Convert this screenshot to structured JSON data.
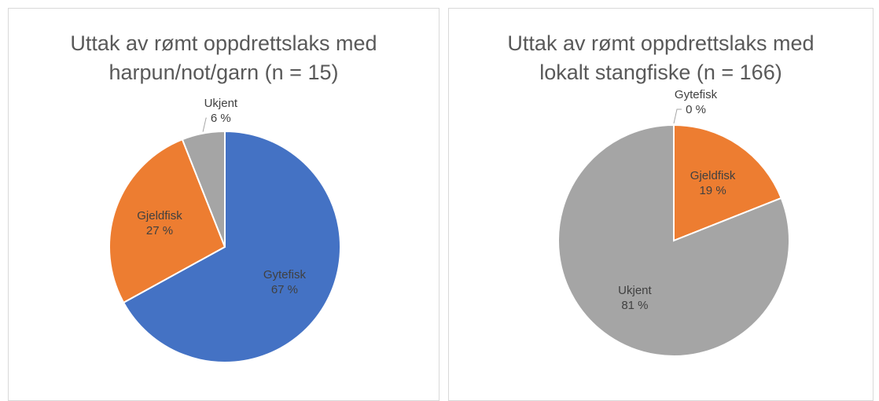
{
  "chart_data": [
    {
      "type": "pie",
      "title": "Uttak av rømt oppdrettslaks med harpun/not/garn (n = 15)",
      "categories": [
        "Gytefisk",
        "Gjeldfisk",
        "Ukjent"
      ],
      "values": [
        67,
        27,
        6
      ],
      "value_labels": [
        "67 %",
        "27 %",
        "6 %"
      ],
      "colors": [
        "#4472c4",
        "#ed7d31",
        "#a5a5a5"
      ]
    },
    {
      "type": "pie",
      "title": "Uttak av rømt oppdrettslaks med lokalt stangfiske (n = 166)",
      "categories": [
        "Gytefisk",
        "Gjeldfisk",
        "Ukjent"
      ],
      "values": [
        0,
        19,
        81
      ],
      "value_labels": [
        "0 %",
        "19 %",
        "81 %"
      ],
      "colors": [
        "#4472c4",
        "#ed7d31",
        "#a5a5a5"
      ]
    }
  ]
}
